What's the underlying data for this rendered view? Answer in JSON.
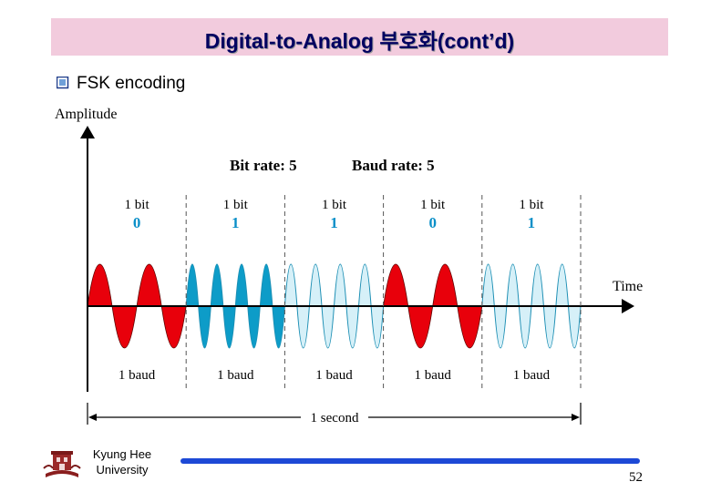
{
  "title": "Digital-to-Analog 부호화(cont’d)",
  "bullet": "FSK encoding",
  "diagram": {
    "y_axis_label": "Amplitude",
    "x_axis_label": "Time",
    "bit_rate_label": "Bit rate: 5",
    "baud_rate_label": "Baud rate: 5",
    "duration_label": "1 second",
    "segments": [
      {
        "bit_label": "1 bit",
        "value": "0",
        "baud_label": "1 baud",
        "cycles": 2,
        "style": "red"
      },
      {
        "bit_label": "1 bit",
        "value": "1",
        "baud_label": "1 baud",
        "cycles": 4,
        "style": "blue"
      },
      {
        "bit_label": "1 bit",
        "value": "1",
        "baud_label": "1 baud",
        "cycles": 4,
        "style": "lightblue"
      },
      {
        "bit_label": "1 bit",
        "value": "0",
        "baud_label": "1 baud",
        "cycles": 2,
        "style": "red"
      },
      {
        "bit_label": "1 bit",
        "value": "1",
        "baud_label": "1 baud",
        "cycles": 4,
        "style": "lightblue"
      }
    ],
    "colors": {
      "red_fill": "#e8000b",
      "blue_fill": "#0d9cc8",
      "lightblue_fill": "#d6f0f8",
      "stroke": "#1d8fb4",
      "value_text": "#0a8fc8"
    }
  },
  "footer": {
    "org_line1": "Kyung Hee",
    "org_line2": "University",
    "page_number": "52"
  }
}
